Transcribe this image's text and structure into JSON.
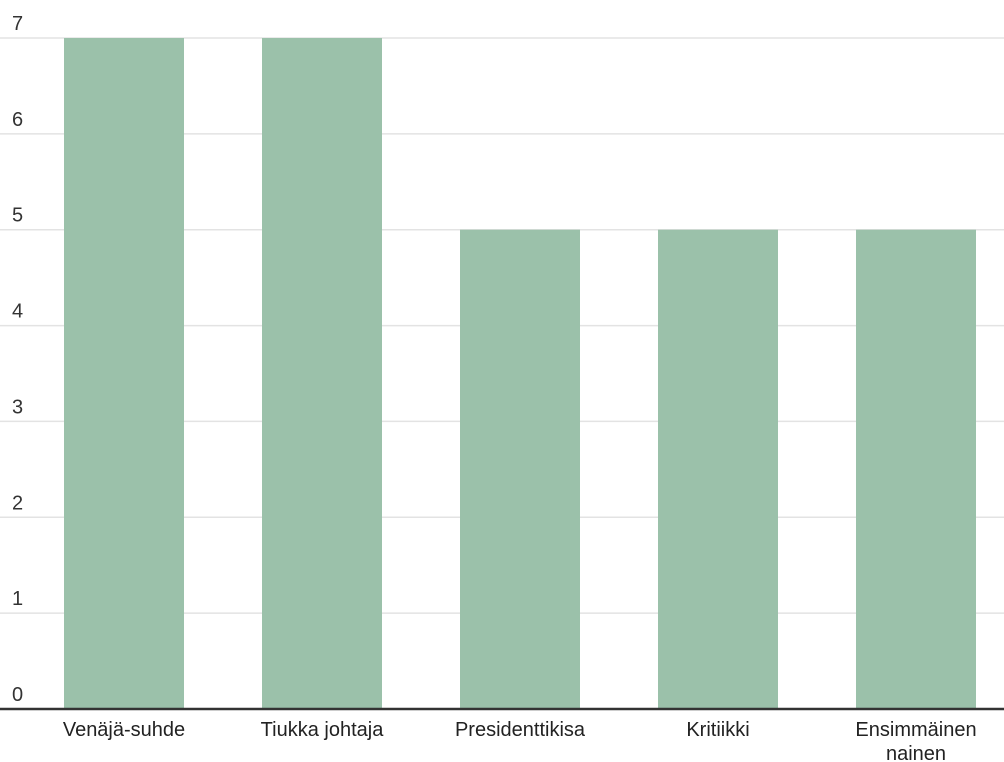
{
  "chart_data": {
    "type": "bar",
    "categories": [
      "Venäjä-suhde",
      "Tiukka johtaja",
      "Presidenttikisa",
      "Kritiikki",
      "Ensimmäinen nainen"
    ],
    "values": [
      7,
      7,
      5,
      5,
      5
    ],
    "title": "",
    "xlabel": "",
    "ylabel": "",
    "ylim": [
      0,
      7
    ],
    "yticks": [
      0,
      1,
      2,
      3,
      4,
      5,
      6,
      7
    ],
    "grid": true,
    "legend": "none",
    "bar_color": "#9bc1aa",
    "grid_color": "#e3e3e3",
    "axis_color": "#333333"
  }
}
